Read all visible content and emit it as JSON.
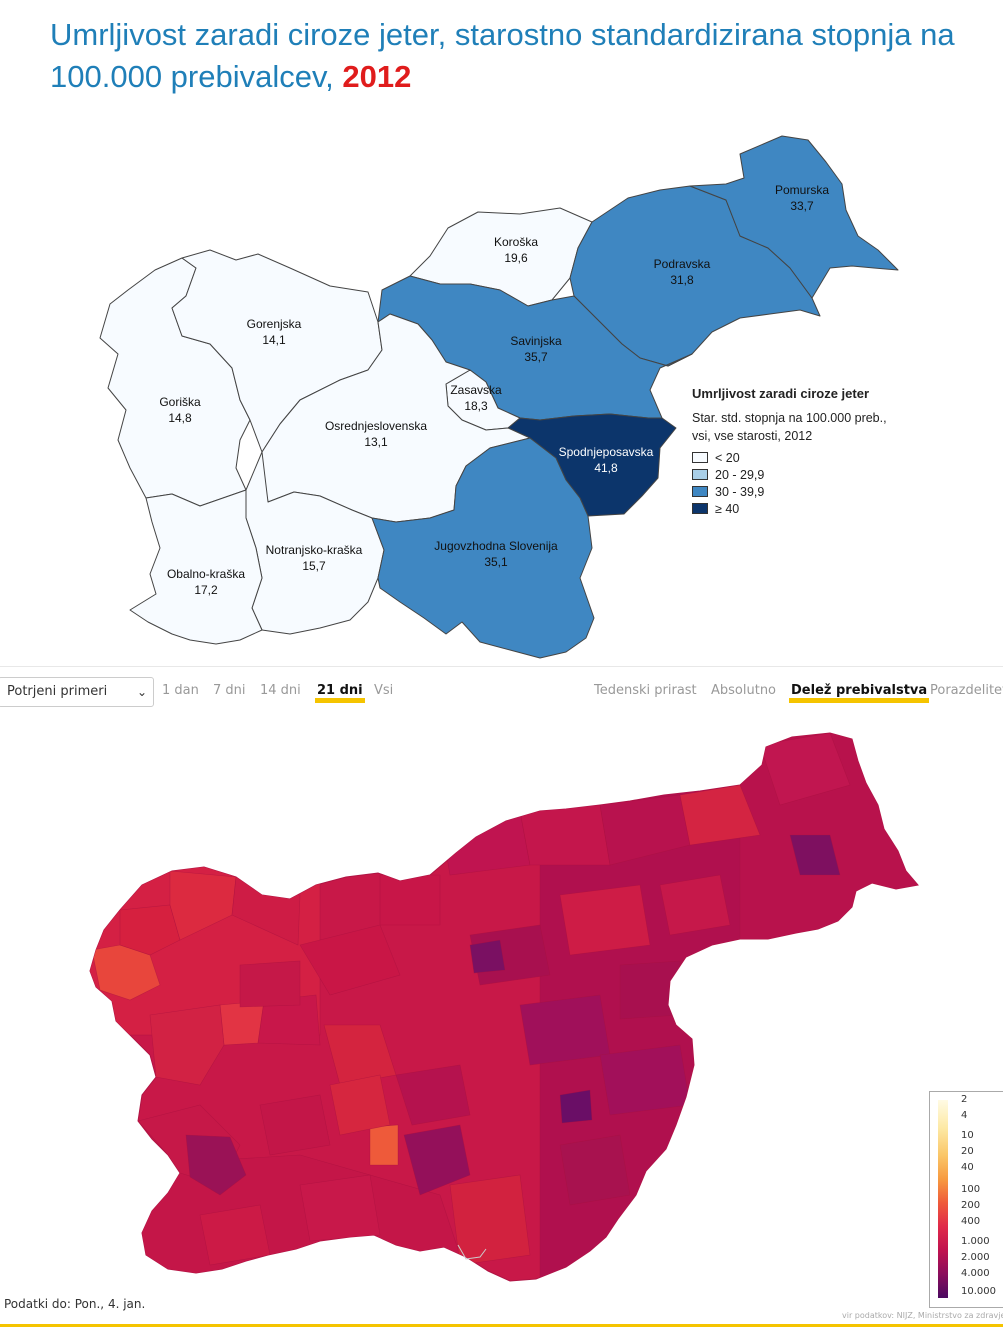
{
  "top": {
    "title": "Umrljivost zaradi ciroze jeter, starostno standardizirana stopnja na 100.000 prebivalcev,",
    "year": "2012",
    "regions": [
      {
        "name": "Pomurska",
        "value": "33,7",
        "class": 3
      },
      {
        "name": "Podravska",
        "value": "31,8",
        "class": 3
      },
      {
        "name": "Koroška",
        "value": "19,6",
        "class": 1
      },
      {
        "name": "Savinjska",
        "value": "35,7",
        "class": 3
      },
      {
        "name": "Zasavska",
        "value": "18,3",
        "class": 1
      },
      {
        "name": "Spodnjeposavska",
        "value": "41,8",
        "class": 4
      },
      {
        "name": "Jugovzhodna Slovenija",
        "value": "35,1",
        "class": 3
      },
      {
        "name": "Osrednjeslovenska",
        "value": "13,1",
        "class": 1
      },
      {
        "name": "Gorenjska",
        "value": "14,1",
        "class": 1
      },
      {
        "name": "Goriška",
        "value": "14,8",
        "class": 1
      },
      {
        "name": "Notranjsko-kraška",
        "value": "15,7",
        "class": 1
      },
      {
        "name": "Obalno-kraška",
        "value": "17,2",
        "class": 1
      }
    ],
    "legend": {
      "title": "Umrljivost zaradi ciroze jeter",
      "subtitle_line1": "Star. std. stopnja na 100.000 preb.,",
      "subtitle_line2": "vsi, vse starosti, 2012",
      "classes": [
        {
          "label": "< 20",
          "color": "#f7fbff"
        },
        {
          "label": "20 - 29,9",
          "color": "#a9cfe8"
        },
        {
          "label": "30 - 39,9",
          "color": "#3f87c2"
        },
        {
          "label": "≥ 40",
          "color": "#0c356b"
        }
      ]
    }
  },
  "toolbar": {
    "select_value": "Potrjeni primeri",
    "time_options": [
      "1 dan",
      "7 dni",
      "14 dni",
      "21 dni",
      "Vsi"
    ],
    "time_active": "21 dni",
    "view_options": [
      "Tedenski prirast",
      "Absolutno",
      "Delež prebivalstva",
      "Porazdelitev"
    ],
    "view_active": "Delež prebivalstva"
  },
  "bottom": {
    "legend_ticks": [
      "2",
      "4",
      "10",
      "20",
      "40",
      "100",
      "200",
      "400",
      "1.000",
      "2.000",
      "4.000",
      "10.000"
    ],
    "footer": "Podatki do: Pon., 4. jan.",
    "source": "vir podatkov: NIJZ, Ministrstvo za zdravje"
  },
  "colors": {
    "title": "#1f7fb8",
    "year": "#e01c1c",
    "highlight": "#f5c400"
  }
}
